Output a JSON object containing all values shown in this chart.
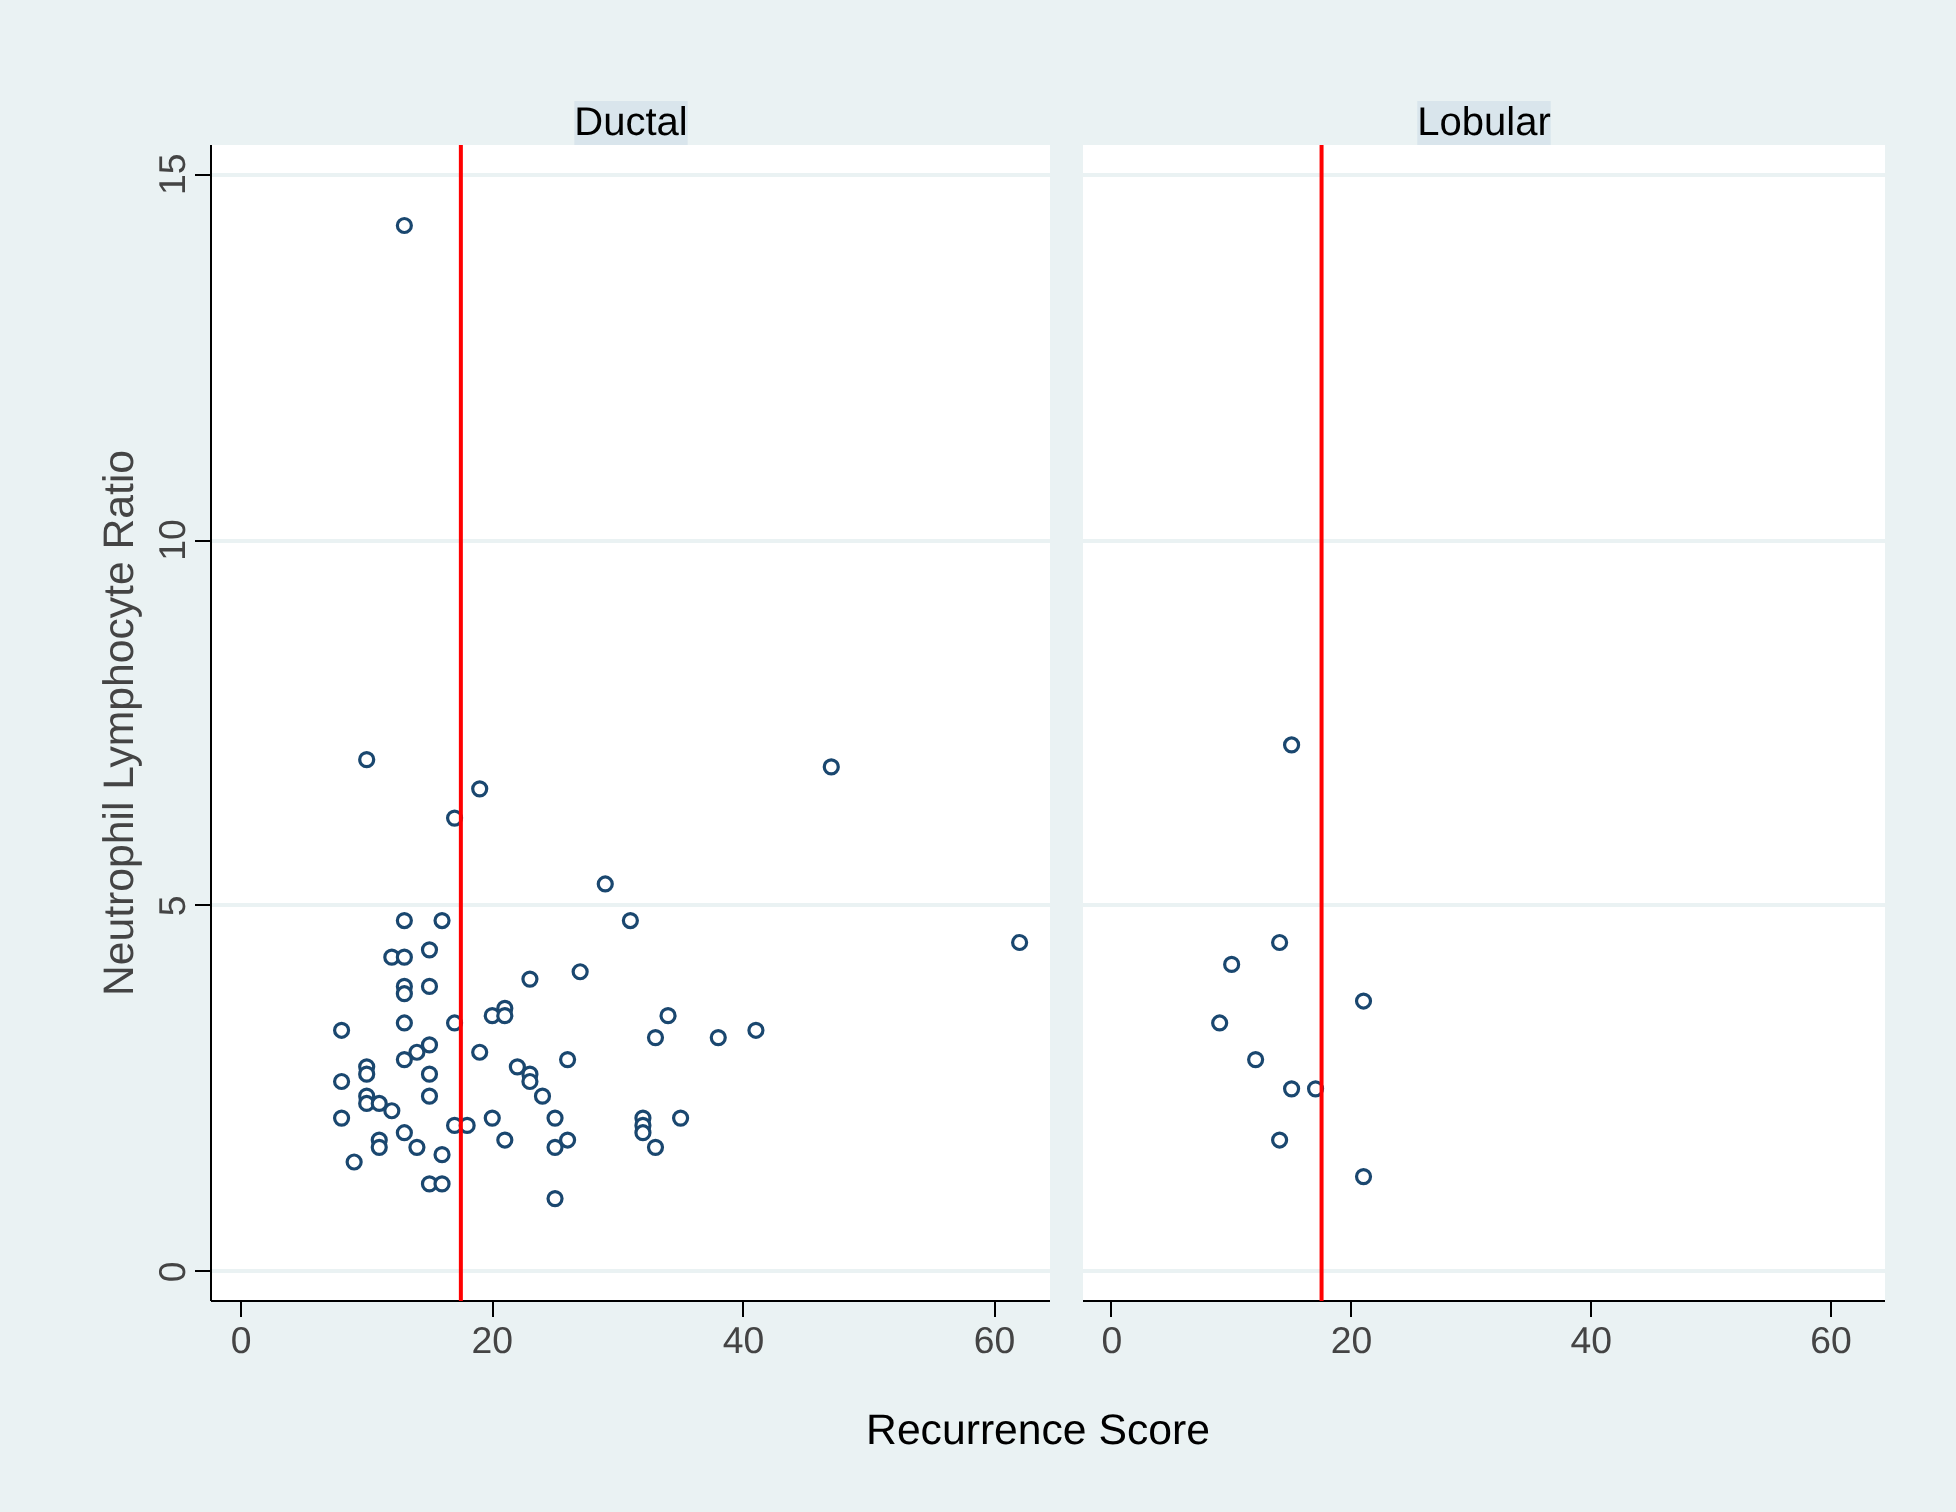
{
  "chart_data": [
    {
      "type": "scatter",
      "title": "Ductal",
      "ylabel": "Neutrophil Lymphocyte Ratio",
      "xlabel": "Recurrence Score",
      "color": "#1a476f",
      "marker": "circle",
      "grid": "y",
      "xlim": [
        -2.4,
        64.5
      ],
      "xticks": [
        0,
        20,
        40,
        60
      ],
      "ylim": [
        -0.4,
        15.4
      ],
      "yticks": [
        0,
        5,
        10,
        15
      ],
      "ref_lines": [
        {
          "axis": "x",
          "value": 17.5,
          "color": "#ff0000"
        }
      ],
      "x": [
        13,
        10,
        19,
        17,
        47,
        29,
        31,
        62,
        13,
        16,
        12,
        13,
        15,
        23,
        27,
        13,
        13,
        15,
        20,
        21,
        21,
        34,
        8,
        13,
        17,
        33,
        38,
        41,
        15,
        14,
        19,
        13,
        10,
        10,
        8,
        15,
        22,
        23,
        23,
        26,
        10,
        10,
        11,
        12,
        15,
        24,
        8,
        13,
        17,
        18,
        20,
        25,
        32,
        32,
        32,
        35,
        11,
        11,
        14,
        16,
        21,
        25,
        26,
        33,
        9,
        15,
        16,
        25
      ],
      "values": [
        14.3,
        7.0,
        6.6,
        6.2,
        6.9,
        5.3,
        4.8,
        4.5,
        4.8,
        4.8,
        4.3,
        4.3,
        4.4,
        4.0,
        4.1,
        3.9,
        3.8,
        3.9,
        3.5,
        3.6,
        3.5,
        3.5,
        3.3,
        3.4,
        3.4,
        3.2,
        3.2,
        3.3,
        3.1,
        3.0,
        3.0,
        2.9,
        2.8,
        2.7,
        2.6,
        2.7,
        2.8,
        2.7,
        2.6,
        2.9,
        2.4,
        2.3,
        2.3,
        2.2,
        2.4,
        2.4,
        2.1,
        1.9,
        2.0,
        2.0,
        2.1,
        2.1,
        2.1,
        2.0,
        1.9,
        2.1,
        1.8,
        1.7,
        1.7,
        1.6,
        1.8,
        1.7,
        1.8,
        1.7,
        1.5,
        1.2,
        1.2,
        1.0
      ]
    },
    {
      "type": "scatter",
      "title": "Lobular",
      "color": "#1a476f",
      "marker": "circle",
      "grid": "y",
      "tick_labels": "x",
      "xlim": [
        -2.4,
        64.5
      ],
      "xticks": [
        0,
        20,
        40,
        60
      ],
      "ylim": [
        -0.4,
        15.4
      ],
      "yticks": [
        0,
        5,
        10,
        15
      ],
      "ref_lines": [
        {
          "axis": "x",
          "value": 17.5,
          "color": "#ff0000"
        }
      ],
      "x": [
        15,
        14,
        10,
        21,
        9,
        12,
        15,
        17,
        14,
        21
      ],
      "values": [
        7.2,
        4.5,
        4.2,
        3.7,
        3.4,
        2.9,
        2.5,
        2.5,
        1.8,
        1.3
      ]
    }
  ]
}
